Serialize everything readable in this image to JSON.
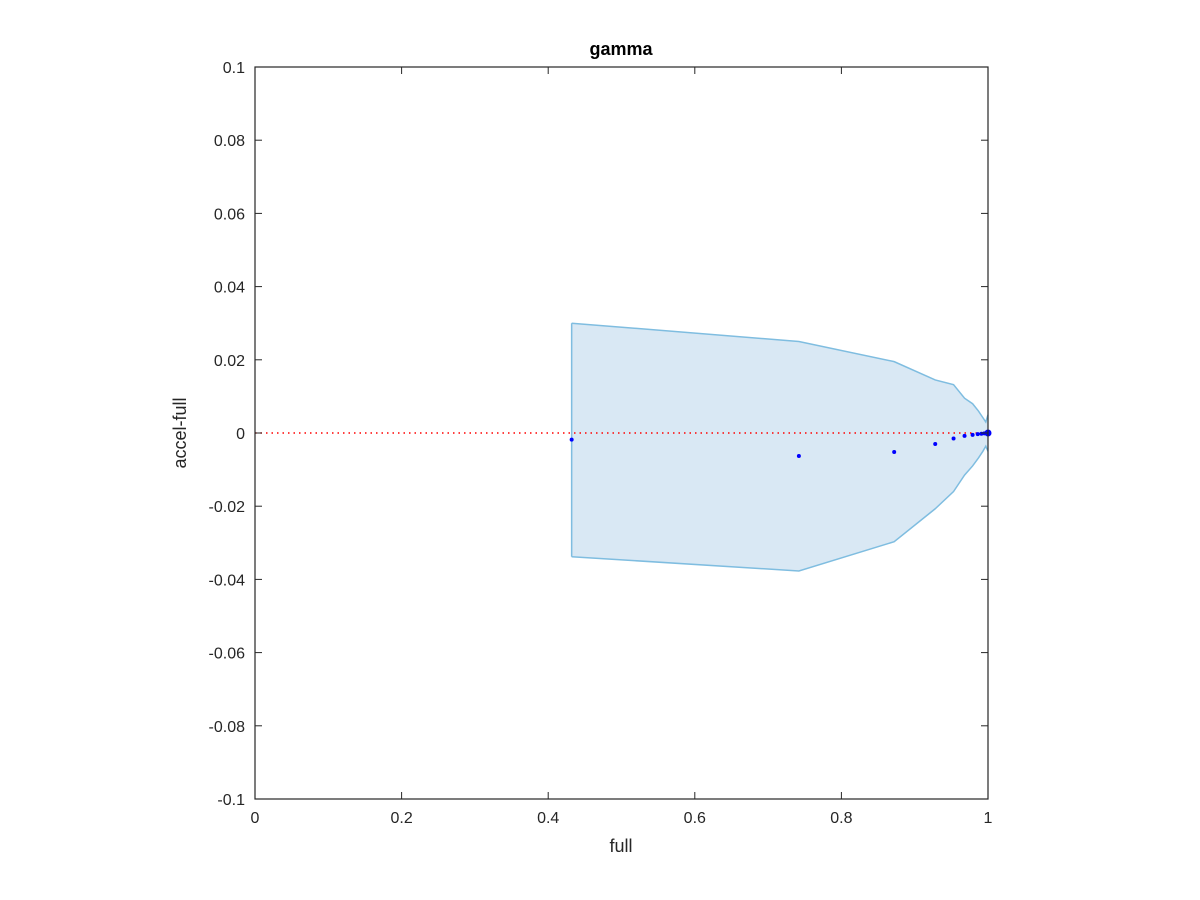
{
  "chart_data": {
    "type": "scatter",
    "title": "gamma",
    "xlabel": "full",
    "ylabel": "accel-full",
    "xlim": [
      0,
      1
    ],
    "ylim": [
      -0.1,
      0.1
    ],
    "xticks": [
      0,
      0.2,
      0.4,
      0.6,
      0.8,
      1
    ],
    "xtick_labels": [
      "0",
      "0.2",
      "0.4",
      "0.6",
      "0.8",
      "1"
    ],
    "yticks": [
      0.1,
      0.08,
      0.06,
      0.04,
      0.02,
      0,
      -0.02,
      -0.04,
      -0.06,
      -0.08,
      -0.1
    ],
    "ytick_labels": [
      "0.1",
      "0.08",
      "0.06",
      "0.04",
      "0.02",
      "0",
      "-0.02",
      "-0.04",
      "-0.06",
      "-0.08",
      "-0.1"
    ],
    "grid": false,
    "reference_line": {
      "y": 0,
      "color": "#ff0000",
      "style": "dotted"
    },
    "band": {
      "color_fill": "#d9e8f4",
      "color_edge": "#7fbde0",
      "x": [
        0.432,
        0.742,
        0.872,
        0.928,
        0.953,
        0.968,
        0.979,
        0.987,
        0.993,
        0.997,
        1.0
      ],
      "upper": [
        0.03,
        0.025,
        0.0195,
        0.0145,
        0.0132,
        0.0095,
        0.008,
        0.006,
        0.0042,
        0.003,
        0.005
      ],
      "lower": [
        -0.0338,
        -0.0377,
        -0.0297,
        -0.0207,
        -0.016,
        -0.0115,
        -0.009,
        -0.0068,
        -0.005,
        -0.0036,
        -0.005
      ]
    },
    "series": [
      {
        "color": "#0000ff",
        "x": [
          0.432,
          0.742,
          0.872,
          0.928,
          0.953,
          0.968,
          0.979,
          0.986,
          0.991,
          0.995,
          0.998,
          1.0
        ],
        "y": [
          -0.0018,
          -0.0063,
          -0.0052,
          -0.003,
          -0.0015,
          -0.0008,
          -0.0005,
          -0.0003,
          -0.0002,
          -0.0001,
          0.0,
          0.0
        ]
      }
    ]
  }
}
